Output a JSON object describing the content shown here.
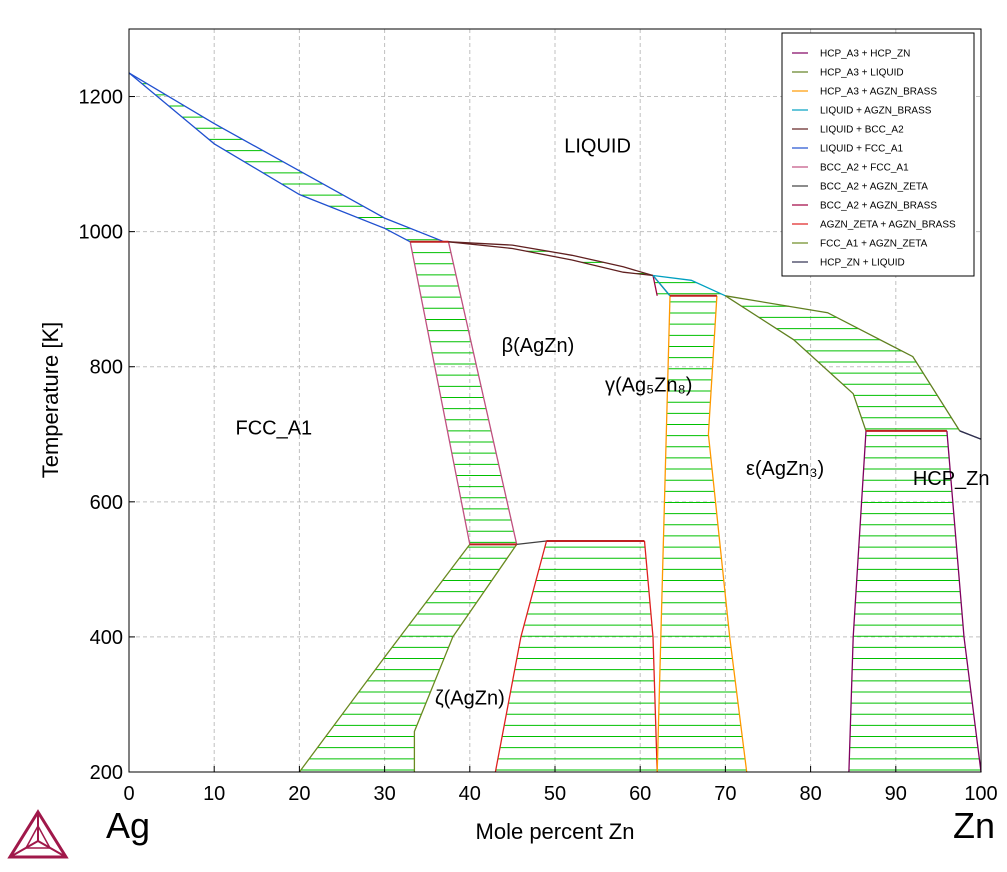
{
  "chart_data": {
    "type": "phase-diagram",
    "title": "",
    "xlabel": "Mole percent Zn",
    "ylabel": "Temperature [K]",
    "xlim": [
      0,
      100
    ],
    "ylim": [
      200,
      1300
    ],
    "x_ticks": [
      0,
      10,
      20,
      30,
      40,
      50,
      60,
      70,
      80,
      90,
      100
    ],
    "y_ticks": [
      200,
      400,
      600,
      800,
      1000,
      1200
    ],
    "left_component": "Ag",
    "right_component": "Zn",
    "grid": true,
    "legend_position": "top-right",
    "legend": [
      {
        "name": "HCP_A3 + HCP_ZN",
        "color": "#800060"
      },
      {
        "name": "HCP_A3 + LIQUID",
        "color": "#608020"
      },
      {
        "name": "HCP_A3 + AGZN_BRASS",
        "color": "#ff9900"
      },
      {
        "name": "LIQUID + AGZN_BRASS",
        "color": "#00a0c0"
      },
      {
        "name": "LIQUID + BCC_A2",
        "color": "#602020"
      },
      {
        "name": "LIQUID + FCC_A1",
        "color": "#2050d0"
      },
      {
        "name": "BCC_A2 + FCC_A1",
        "color": "#c05080"
      },
      {
        "name": "BCC_A2 + AGZN_ZETA",
        "color": "#404040"
      },
      {
        "name": "BCC_A2 + AGZN_BRASS",
        "color": "#a00040"
      },
      {
        "name": "AGZN_ZETA + AGZN_BRASS",
        "color": "#e02020"
      },
      {
        "name": "FCC_A1 + AGZN_ZETA",
        "color": "#6a8a20"
      },
      {
        "name": "HCP_ZN + LIQUID",
        "color": "#303050"
      }
    ],
    "phase_labels": [
      {
        "text": "LIQUID",
        "x": 55,
        "y": 1117
      },
      {
        "text": "β(AgZn)",
        "x": 48,
        "y": 822
      },
      {
        "text": "γ(Ag₅Zn₈)",
        "x": 61,
        "y": 763
      },
      {
        "text": "FCC_A1",
        "x": 17,
        "y": 700
      },
      {
        "text": "ε(AgZn₃)",
        "x": 77,
        "y": 640
      },
      {
        "text": "HCP_Zn",
        "x": 96.5,
        "y": 625
      },
      {
        "text": "ζ(AgZn)",
        "x": 40,
        "y": 300
      }
    ],
    "tie_line_color": "#00c000",
    "regions": [
      {
        "name": "LIQUID + FCC_A1",
        "color": "#2050d0",
        "left": [
          [
            0,
            1235
          ],
          [
            10,
            1160
          ],
          [
            20,
            1090
          ],
          [
            30,
            1020
          ],
          [
            37,
            985
          ]
        ],
        "right": [
          [
            0,
            1235
          ],
          [
            10,
            1130
          ],
          [
            20,
            1055
          ],
          [
            30,
            1005
          ],
          [
            33,
            985
          ]
        ]
      },
      {
        "name": "BCC_A2 + FCC_A1",
        "color": "#c05080",
        "left": [
          [
            33,
            985
          ],
          [
            40,
            537
          ]
        ],
        "right": [
          [
            37.5,
            985
          ],
          [
            45.5,
            537
          ]
        ]
      },
      {
        "name": "LIQUID + BCC_A2",
        "color": "#602020",
        "left": [
          [
            37.5,
            985
          ],
          [
            45,
            980
          ],
          [
            52,
            965
          ],
          [
            58,
            948
          ],
          [
            61.5,
            935
          ]
        ],
        "right": [
          [
            37.5,
            985
          ],
          [
            45,
            975
          ],
          [
            52,
            958
          ],
          [
            58,
            940
          ],
          [
            61.5,
            935
          ]
        ]
      },
      {
        "name": "BCC_A2 + AGZN_BRASS",
        "color": "#a00040",
        "left": [
          [
            61.5,
            935
          ],
          [
            62,
            905
          ]
        ],
        "right": [
          [
            61.5,
            935
          ],
          [
            63.5,
            905
          ]
        ]
      },
      {
        "name": "BCC_A2 + AGZN_ZETA",
        "color": "#404040",
        "left": [
          [
            40,
            537
          ],
          [
            45.5,
            537
          ]
        ],
        "right": [
          [
            45.5,
            537
          ],
          [
            49,
            542
          ]
        ]
      },
      {
        "name": "FCC_A1 + AGZN_ZETA",
        "color": "#6a8a20",
        "left": [
          [
            40,
            537
          ],
          [
            30,
            370
          ],
          [
            20,
            200
          ]
        ],
        "right": [
          [
            45.5,
            537
          ],
          [
            38,
            400
          ],
          [
            33.5,
            260
          ],
          [
            33.5,
            200
          ]
        ]
      },
      {
        "name": "AGZN_ZETA + AGZN_BRASS",
        "color": "#e02020",
        "left": [
          [
            60.5,
            542
          ],
          [
            61.5,
            400
          ],
          [
            62,
            200
          ]
        ],
        "right": [
          [
            49,
            542
          ],
          [
            46,
            400
          ],
          [
            43,
            200
          ]
        ]
      },
      {
        "name": "LIQUID + AGZN_BRASS",
        "color": "#00a0c0",
        "left": [
          [
            61.5,
            935
          ],
          [
            63.5,
            905
          ]
        ],
        "right": [
          [
            61.5,
            935
          ],
          [
            66,
            928
          ],
          [
            70,
            905
          ]
        ]
      },
      {
        "name": "HCP_A3 + AGZN_BRASS",
        "color": "#ff9900",
        "left": [
          [
            63.5,
            905
          ],
          [
            62,
            200
          ]
        ],
        "right": [
          [
            69,
            905
          ],
          [
            68,
            700
          ],
          [
            70.5,
            400
          ],
          [
            72.5,
            200
          ]
        ]
      },
      {
        "name": "HCP_A3 + LIQUID",
        "color": "#608020",
        "left": [
          [
            70,
            905
          ],
          [
            78,
            840
          ],
          [
            85,
            760
          ],
          [
            86.5,
            705
          ]
        ],
        "right": [
          [
            70,
            905
          ],
          [
            82,
            880
          ],
          [
            92,
            815
          ],
          [
            97.5,
            705
          ]
        ]
      },
      {
        "name": "HCP_A3 + HCP_ZN",
        "color": "#800060",
        "left": [
          [
            86.5,
            705
          ],
          [
            85,
            400
          ],
          [
            84.5,
            200
          ]
        ],
        "right": [
          [
            96,
            705
          ],
          [
            98,
            400
          ],
          [
            100,
            200
          ]
        ]
      },
      {
        "name": "HCP_ZN + LIQUID",
        "color": "#303050",
        "left": [
          [
            97.5,
            705
          ],
          [
            100,
            692.7
          ]
        ],
        "right": [
          [
            97.5,
            705
          ],
          [
            100,
            692.7
          ]
        ]
      }
    ]
  }
}
